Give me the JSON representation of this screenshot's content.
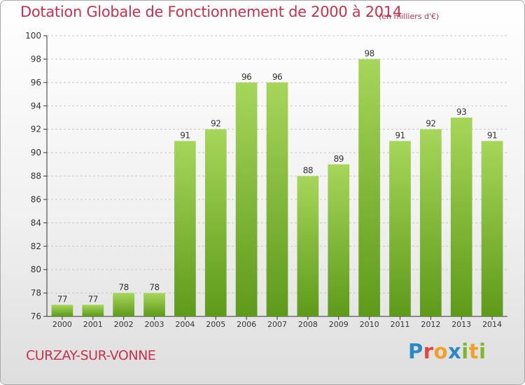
{
  "chart_data": {
    "type": "bar",
    "title": "Dotation Globale de Fonctionnement de 2000 à 2014",
    "subtitle": "(en milliers d'€)",
    "categories": [
      "2000",
      "2001",
      "2002",
      "2003",
      "2004",
      "2005",
      "2006",
      "2007",
      "2008",
      "2009",
      "2010",
      "2011",
      "2012",
      "2013",
      "2014"
    ],
    "values": [
      77,
      77,
      78,
      78,
      91,
      92,
      96,
      96,
      88,
      89,
      98,
      91,
      92,
      93,
      91
    ],
    "ylim": [
      76,
      100
    ],
    "yticks": [
      76,
      78,
      80,
      82,
      84,
      86,
      88,
      90,
      92,
      94,
      96,
      98,
      100
    ],
    "xlabel": "",
    "ylabel": "",
    "grid": true,
    "bar_color_top": "#a6d65a",
    "bar_color_bottom": "#5e9a1a"
  },
  "footer": {
    "commune": "CURZAY-SUR-VONNE",
    "logo_letters": [
      "P",
      "r",
      "o",
      "x",
      "i",
      "t",
      "i"
    ]
  },
  "colors": {
    "title": "#c8324c",
    "axis": "#333333",
    "grid": "#c8c8c8"
  }
}
